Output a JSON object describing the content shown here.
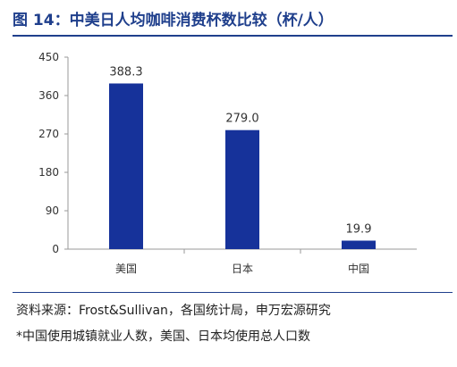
{
  "figure": {
    "title": "图 14：中美日人均咖啡消费杯数比较（杯/人）",
    "source": "资料来源：Frost&Sullivan，各国统计局，申万宏源研究",
    "footnote": "*中国使用城镇就业人数，美国、日本均使用总人口数"
  },
  "colors": {
    "bar": "#16329a",
    "accent": "#1f3f8c",
    "axis": "#9a9a9a"
  },
  "chart_data": {
    "type": "bar",
    "categories": [
      "美国",
      "日本",
      "中国"
    ],
    "values": [
      388.3,
      279.0,
      19.9
    ],
    "data_labels": [
      "388.3",
      "279.0",
      "19.9"
    ],
    "y_ticks": [
      0,
      90,
      180,
      270,
      360,
      450
    ],
    "ylim": [
      0,
      450
    ],
    "grid": false,
    "legend": "none"
  }
}
